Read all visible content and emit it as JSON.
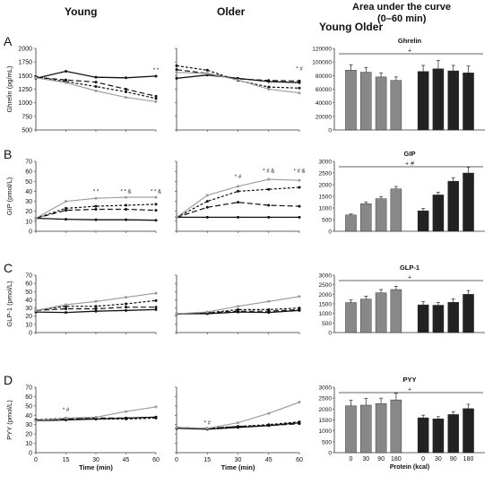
{
  "headers": {
    "young": "Young",
    "older": "Older",
    "auc_line1": "Area under the curve",
    "auc_line2": "(0–60 min)",
    "young_older": "Young Older"
  },
  "colors": {
    "young_bar": "#888888",
    "older_bar": "#222222",
    "line": "#111111",
    "line_light": "#999999"
  },
  "chart_data": [
    {
      "type": "line",
      "panel_letter": "A",
      "group": "Young",
      "ylabel": "Ghrelin (pg/mL)",
      "xlabel": "",
      "ylim": [
        500,
        2000
      ],
      "yticks": [
        500,
        750,
        1000,
        1250,
        1500,
        1750,
        2000
      ],
      "x": [
        0,
        15,
        30,
        45,
        60
      ],
      "xticks": [
        0,
        15,
        30,
        45,
        60
      ],
      "series": [
        {
          "values": [
            1450,
            1580,
            1470,
            1460,
            1490
          ],
          "style": "solid-dark"
        },
        {
          "values": [
            1470,
            1420,
            1380,
            1250,
            1120
          ],
          "style": "dash-long"
        },
        {
          "values": [
            1480,
            1390,
            1300,
            1200,
            1080
          ],
          "style": "dash-short"
        },
        {
          "values": [
            1460,
            1370,
            1220,
            1100,
            1020
          ],
          "style": "solid-light"
        }
      ],
      "annotations": [
        {
          "x": 60,
          "y": 1570,
          "text": "* *"
        }
      ]
    },
    {
      "type": "line",
      "panel_letter": "",
      "group": "Older",
      "ylabel": "",
      "xlabel": "",
      "ylim": [
        500,
        2000
      ],
      "yticks": [
        500,
        750,
        1000,
        1250,
        1500,
        1750,
        2000
      ],
      "x": [
        0,
        15,
        30,
        45,
        60
      ],
      "xticks": [
        0,
        15,
        30,
        45,
        60
      ],
      "series": [
        {
          "values": [
            1450,
            1510,
            1450,
            1390,
            1370
          ],
          "style": "solid-dark"
        },
        {
          "values": [
            1610,
            1540,
            1440,
            1410,
            1400
          ],
          "style": "dash-long"
        },
        {
          "values": [
            1680,
            1600,
            1410,
            1290,
            1270
          ],
          "style": "dash-short"
        },
        {
          "values": [
            1560,
            1540,
            1420,
            1250,
            1180
          ],
          "style": "solid-light"
        }
      ],
      "annotations": [
        {
          "x": 60,
          "y": 1600,
          "text": "* #"
        }
      ]
    },
    {
      "type": "bar",
      "group": "AUC",
      "title": "Ghrelin",
      "ylim": [
        0,
        120000
      ],
      "yticks": [
        0,
        20000,
        40000,
        60000,
        80000,
        100000,
        120000
      ],
      "young": [
        88000,
        85000,
        78000,
        73000
      ],
      "older": [
        86000,
        90000,
        87000,
        84000
      ],
      "young_err": [
        8000,
        7000,
        6000,
        5000
      ],
      "older_err": [
        9000,
        12000,
        8000,
        10000
      ],
      "bracket": "+"
    },
    {
      "type": "line",
      "panel_letter": "B",
      "group": "Young",
      "ylabel": "GIP (pmol/L)",
      "xlabel": "",
      "ylim": [
        0,
        70
      ],
      "yticks": [
        0,
        10,
        20,
        30,
        40,
        50,
        60,
        70
      ],
      "x": [
        0,
        15,
        30,
        45,
        60
      ],
      "xticks": [
        0,
        15,
        30,
        45,
        60
      ],
      "series": [
        {
          "values": [
            13,
            12,
            11.5,
            11.5,
            11
          ],
          "style": "solid-dark"
        },
        {
          "values": [
            13,
            21,
            22,
            22,
            21
          ],
          "style": "dash-long"
        },
        {
          "values": [
            13,
            23,
            25,
            26,
            27
          ],
          "style": "dash-short"
        },
        {
          "values": [
            13,
            30,
            33,
            34,
            34
          ],
          "style": "solid-light"
        }
      ],
      "annotations": [
        {
          "x": 30,
          "y": 38,
          "text": "* *"
        },
        {
          "x": 45,
          "y": 38,
          "text": "* * &"
        },
        {
          "x": 60,
          "y": 38,
          "text": "* * &"
        }
      ]
    },
    {
      "type": "line",
      "panel_letter": "",
      "group": "Older",
      "ylabel": "",
      "xlabel": "",
      "ylim": [
        0,
        70
      ],
      "yticks": [
        0,
        10,
        20,
        30,
        40,
        50,
        60,
        70
      ],
      "x": [
        0,
        15,
        30,
        45,
        60
      ],
      "xticks": [
        0,
        15,
        30,
        45,
        60
      ],
      "series": [
        {
          "values": [
            14,
            14,
            14,
            14,
            14
          ],
          "style": "solid-dark"
        },
        {
          "values": [
            14,
            24,
            29,
            26,
            25
          ],
          "style": "dash-long"
        },
        {
          "values": [
            14,
            30,
            40,
            42,
            44
          ],
          "style": "dash-short"
        },
        {
          "values": [
            14,
            36,
            45,
            52,
            51
          ],
          "style": "solid-light"
        }
      ],
      "annotations": [
        {
          "x": 30,
          "y": 53,
          "text": "* #"
        },
        {
          "x": 45,
          "y": 59,
          "text": "* # &"
        },
        {
          "x": 60,
          "y": 59,
          "text": "* # &"
        }
      ]
    },
    {
      "type": "bar",
      "group": "AUC",
      "title": "GIP",
      "ylim": [
        0,
        3000
      ],
      "yticks": [
        0,
        500,
        1000,
        1500,
        2000,
        2500,
        3000
      ],
      "young": [
        700,
        1180,
        1400,
        1820
      ],
      "older": [
        880,
        1560,
        2150,
        2500
      ],
      "young_err": [
        40,
        70,
        90,
        100
      ],
      "older_err": [
        100,
        120,
        150,
        250
      ],
      "bracket": "+ #"
    },
    {
      "type": "line",
      "panel_letter": "C",
      "group": "Young",
      "ylabel": "GLP-1 (pmol/L)",
      "xlabel": "",
      "ylim": [
        0,
        70
      ],
      "yticks": [
        0,
        10,
        20,
        30,
        40,
        50,
        60,
        70
      ],
      "x": [
        0,
        15,
        30,
        45,
        60
      ],
      "xticks": [
        0,
        15,
        30,
        45,
        60
      ],
      "series": [
        {
          "values": [
            25,
            24.5,
            26,
            27,
            28
          ],
          "style": "solid-dark"
        },
        {
          "values": [
            27,
            29,
            29,
            31,
            31
          ],
          "style": "dash-long"
        },
        {
          "values": [
            27,
            32,
            32,
            35,
            39
          ],
          "style": "dash-short"
        },
        {
          "values": [
            27,
            34,
            38,
            43,
            48
          ],
          "style": "solid-light"
        }
      ],
      "annotations": []
    },
    {
      "type": "line",
      "panel_letter": "",
      "group": "Older",
      "ylabel": "",
      "xlabel": "",
      "ylim": [
        0,
        70
      ],
      "yticks": [
        0,
        10,
        20,
        30,
        40,
        50,
        60,
        70
      ],
      "x": [
        0,
        15,
        30,
        45,
        60
      ],
      "xticks": [
        0,
        15,
        30,
        45,
        60
      ],
      "series": [
        {
          "values": [
            23,
            23,
            25,
            24.5,
            27
          ],
          "style": "solid-dark"
        },
        {
          "values": [
            22.5,
            24,
            26,
            26,
            28
          ],
          "style": "dash-long"
        },
        {
          "values": [
            23,
            24,
            28,
            28,
            30
          ],
          "style": "dash-short"
        },
        {
          "values": [
            23,
            25,
            32,
            38,
            44
          ],
          "style": "solid-light"
        }
      ],
      "annotations": []
    },
    {
      "type": "bar",
      "group": "AUC",
      "title": "GLP-1",
      "ylim": [
        0,
        3000
      ],
      "yticks": [
        0,
        500,
        1000,
        1500,
        2000,
        2500,
        3000
      ],
      "young": [
        1570,
        1750,
        2080,
        2250
      ],
      "older": [
        1450,
        1430,
        1580,
        2000
      ],
      "young_err": [
        130,
        150,
        170,
        170
      ],
      "older_err": [
        160,
        150,
        180,
        200
      ],
      "bracket": "+"
    },
    {
      "type": "line",
      "panel_letter": "D",
      "group": "Young",
      "ylabel": "PYY (pmol/L)",
      "xlabel": "Time (min)",
      "ylim": [
        0,
        70
      ],
      "yticks": [
        0,
        10,
        20,
        30,
        40,
        50,
        60,
        70
      ],
      "x": [
        0,
        15,
        30,
        45,
        60
      ],
      "xticks": [
        0,
        15,
        30,
        45,
        60
      ],
      "series": [
        {
          "values": [
            34,
            35,
            36,
            37,
            38
          ],
          "style": "solid-dark"
        },
        {
          "values": [
            35,
            36,
            37,
            37,
            38
          ],
          "style": "dash-long"
        },
        {
          "values": [
            35,
            37,
            36,
            36,
            37
          ],
          "style": "dash-short"
        },
        {
          "values": [
            34,
            37,
            38,
            44,
            49
          ],
          "style": "solid-light"
        }
      ],
      "annotations": [
        {
          "x": 15,
          "y": 44,
          "text": "* #"
        }
      ]
    },
    {
      "type": "line",
      "panel_letter": "",
      "group": "Older",
      "ylabel": "",
      "xlabel": "Time (min)",
      "ylim": [
        0,
        70
      ],
      "yticks": [
        0,
        10,
        20,
        30,
        40,
        50,
        60,
        70
      ],
      "x": [
        0,
        15,
        30,
        45,
        60
      ],
      "xticks": [
        0,
        15,
        30,
        45,
        60
      ],
      "series": [
        {
          "values": [
            26,
            25,
            27,
            29,
            32
          ],
          "style": "solid-dark"
        },
        {
          "values": [
            27,
            26,
            28,
            29,
            31
          ],
          "style": "dash-long"
        },
        {
          "values": [
            26,
            26,
            28,
            30,
            33
          ],
          "style": "dash-short"
        },
        {
          "values": [
            27,
            26,
            32,
            42,
            54
          ],
          "style": "solid-light"
        }
      ],
      "annotations": [
        {
          "x": 15,
          "y": 30,
          "text": "* #"
        }
      ]
    },
    {
      "type": "bar",
      "group": "AUC",
      "title": "PYY",
      "ylim": [
        0,
        3000
      ],
      "yticks": [
        0,
        500,
        1000,
        1500,
        2000,
        2500,
        3000
      ],
      "young": [
        2150,
        2180,
        2250,
        2420
      ],
      "older": [
        1600,
        1550,
        1750,
        2020
      ],
      "young_err": [
        250,
        300,
        250,
        300
      ],
      "older_err": [
        120,
        100,
        120,
        200
      ],
      "bracket": "+",
      "categories_young": [
        "0",
        "30",
        "90",
        "180"
      ],
      "categories_older": [
        "0",
        "30",
        "90",
        "180"
      ],
      "xlabel": "Protein (kcal)"
    }
  ]
}
